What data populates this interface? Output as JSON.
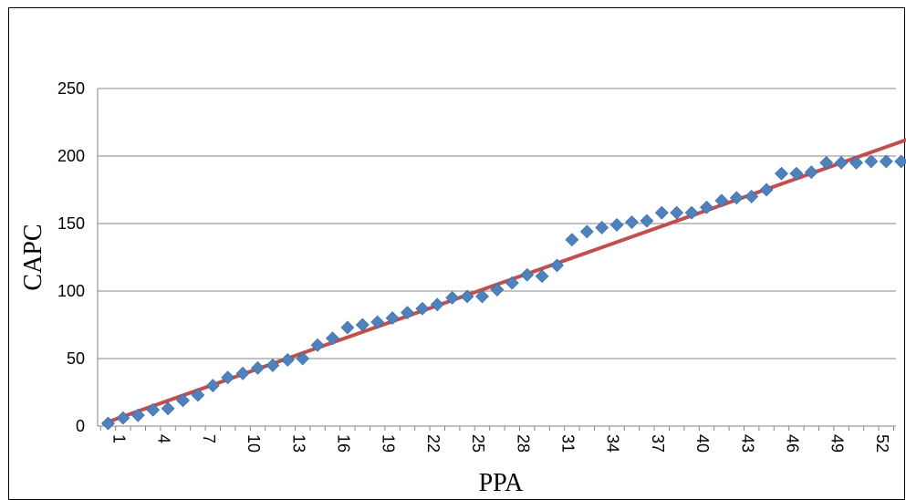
{
  "chart_data": {
    "type": "scatter",
    "title": "",
    "xlabel": "PPA",
    "ylabel": "CAPC",
    "ylim": [
      0,
      250
    ],
    "yticks": [
      0,
      50,
      100,
      150,
      200,
      250
    ],
    "xticks": [
      1,
      4,
      7,
      10,
      13,
      16,
      19,
      22,
      25,
      28,
      31,
      34,
      37,
      40,
      43,
      46,
      49,
      52
    ],
    "xlim": [
      1,
      54
    ],
    "grid": true,
    "legend": "none",
    "series": [
      {
        "kind": "markers",
        "marker": "diamond",
        "color": "#4F81BD",
        "x": [
          1,
          2,
          3,
          4,
          5,
          6,
          7,
          8,
          9,
          10,
          11,
          12,
          13,
          14,
          15,
          16,
          17,
          18,
          19,
          20,
          21,
          22,
          23,
          24,
          25,
          26,
          27,
          28,
          29,
          30,
          31,
          32,
          33,
          34,
          35,
          36,
          37,
          38,
          39,
          40,
          41,
          42,
          43,
          44,
          45,
          46,
          47,
          48,
          49,
          50,
          51,
          52,
          53,
          54
        ],
        "y": [
          2,
          6,
          8,
          12,
          13,
          19,
          23,
          30,
          36,
          39,
          43,
          45,
          49,
          50,
          60,
          65,
          73,
          75,
          77,
          80,
          84,
          87,
          90,
          95,
          96,
          96,
          101,
          106,
          112,
          111,
          119,
          138,
          144,
          147,
          149,
          151,
          152,
          158,
          158,
          158,
          162,
          167,
          169,
          170,
          175,
          187,
          187,
          188,
          195,
          195,
          195,
          196,
          196,
          196
        ]
      },
      {
        "kind": "trendline",
        "color": "#C0504D",
        "x": [
          1,
          54
        ],
        "y": [
          2,
          213
        ]
      }
    ]
  }
}
